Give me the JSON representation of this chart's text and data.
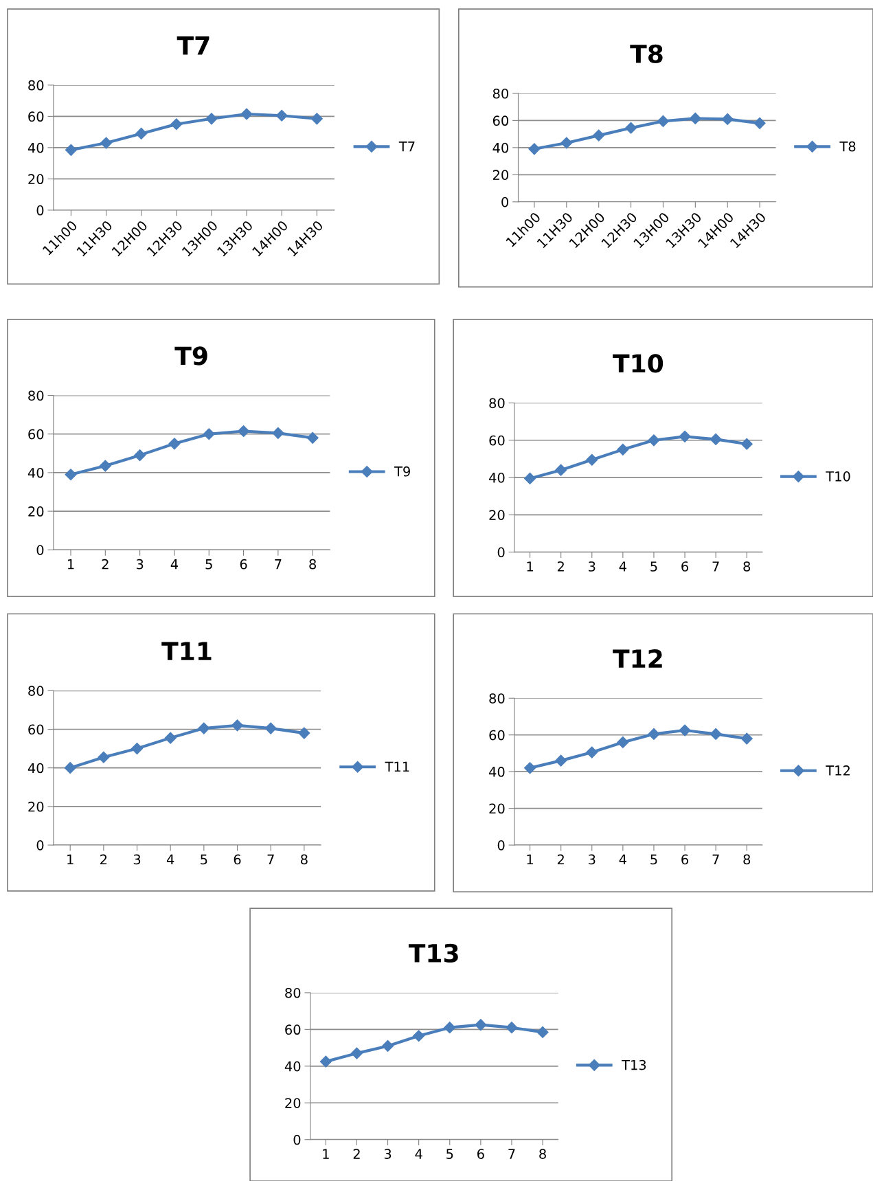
{
  "chart_data": [
    {
      "type": "line",
      "title": "T7",
      "categories": [
        "11h00",
        "11H30",
        "12H00",
        "12H30",
        "13H00",
        "13H30",
        "14H00",
        "14H30"
      ],
      "series": [
        {
          "name": "T7",
          "color": "#4a7ebb",
          "values": [
            38.5,
            43,
            49,
            55,
            58.5,
            61.5,
            60.5,
            58.5
          ]
        }
      ],
      "ylim": [
        0,
        80
      ],
      "yticks": [
        0,
        20,
        40,
        60,
        80
      ],
      "grid": "y",
      "legend": "right",
      "marker": "diamond",
      "line_style": "solid"
    },
    {
      "type": "line",
      "title": "T8",
      "categories": [
        "11h00",
        "11H30",
        "12H00",
        "12H30",
        "13H00",
        "13H30",
        "14H00",
        "14H30"
      ],
      "series": [
        {
          "name": "T8",
          "color": "#4a7ebb",
          "values": [
            39,
            43.5,
            49,
            54.5,
            59.5,
            61.5,
            61,
            58
          ]
        }
      ],
      "ylim": [
        0,
        80
      ],
      "yticks": [
        0,
        20,
        40,
        60,
        80
      ],
      "grid": "y",
      "legend": "right",
      "marker": "diamond",
      "line_style": "solid"
    },
    {
      "type": "line",
      "title": "T9",
      "categories": [
        "1",
        "2",
        "3",
        "4",
        "5",
        "6",
        "7",
        "8"
      ],
      "series": [
        {
          "name": "T9",
          "color": "#4a7ebb",
          "values": [
            39,
            43.5,
            49,
            55,
            60,
            61.5,
            60.5,
            58
          ]
        }
      ],
      "ylim": [
        0,
        80
      ],
      "yticks": [
        0,
        20,
        40,
        60,
        80
      ],
      "grid": "y",
      "legend": "right",
      "marker": "diamond",
      "line_style": "solid"
    },
    {
      "type": "line",
      "title": "T10",
      "categories": [
        "1",
        "2",
        "3",
        "4",
        "5",
        "6",
        "7",
        "8"
      ],
      "series": [
        {
          "name": "T10",
          "color": "#4a7ebb",
          "values": [
            39.5,
            44,
            49.5,
            55,
            60,
            62,
            60.5,
            58
          ]
        }
      ],
      "ylim": [
        0,
        80
      ],
      "yticks": [
        0,
        20,
        40,
        60,
        80
      ],
      "grid": "y",
      "legend": "right",
      "marker": "diamond",
      "line_style": "solid"
    },
    {
      "type": "line",
      "title": "T11",
      "categories": [
        "1",
        "2",
        "3",
        "4",
        "5",
        "6",
        "7",
        "8"
      ],
      "series": [
        {
          "name": "T11",
          "color": "#4a7ebb",
          "values": [
            40,
            45.5,
            50,
            55.5,
            60.5,
            62,
            60.5,
            58
          ]
        }
      ],
      "ylim": [
        0,
        80
      ],
      "yticks": [
        0,
        20,
        40,
        60,
        80
      ],
      "grid": "y",
      "legend": "right",
      "marker": "diamond",
      "line_style": "solid"
    },
    {
      "type": "line",
      "title": "T12",
      "categories": [
        "1",
        "2",
        "3",
        "4",
        "5",
        "6",
        "7",
        "8"
      ],
      "series": [
        {
          "name": "T12",
          "color": "#4a7ebb",
          "values": [
            42,
            46,
            50.5,
            56,
            60.5,
            62.5,
            60.5,
            58
          ]
        }
      ],
      "ylim": [
        0,
        80
      ],
      "yticks": [
        0,
        20,
        40,
        60,
        80
      ],
      "grid": "y",
      "legend": "right",
      "marker": "diamond",
      "line_style": "solid"
    },
    {
      "type": "line",
      "title": "T13",
      "categories": [
        "1",
        "2",
        "3",
        "4",
        "5",
        "6",
        "7",
        "8"
      ],
      "series": [
        {
          "name": "T13",
          "color": "#4a7ebb",
          "values": [
            42.5,
            47,
            51,
            56.5,
            61,
            62.5,
            61,
            58.5
          ]
        }
      ],
      "ylim": [
        0,
        80
      ],
      "yticks": [
        0,
        20,
        40,
        60,
        80
      ],
      "grid": "y",
      "legend": "right",
      "marker": "diamond",
      "line_style": "solid"
    }
  ]
}
